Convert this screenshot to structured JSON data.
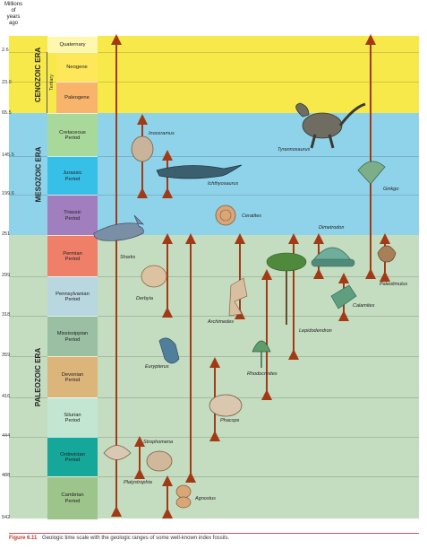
{
  "y_axis": {
    "title_line1": "Millions",
    "title_line2": "of",
    "title_line3": "years",
    "title_line4": "ago",
    "ticks": [
      "2.6",
      "23.0",
      "65.5",
      "145.5",
      "199.6",
      "251",
      "299",
      "318",
      "359",
      "416",
      "444",
      "488",
      "542"
    ]
  },
  "eras": {
    "cenozoic": "CENOZOIC ERA",
    "mesozoic": "MESOZOIC ERA",
    "paleozoic": "PALEOZOIC ERA",
    "tertiary": "Tertiary"
  },
  "periods": {
    "quaternary": "Quaternary",
    "neogene": "Neogene",
    "paleogene": "Paleogene",
    "cretaceous_1": "Cretaceous",
    "cretaceous_2": "Period",
    "jurassic_1": "Jurassic",
    "jurassic_2": "Period",
    "triassic_1": "Triassic",
    "triassic_2": "Period",
    "permian_1": "Permian",
    "permian_2": "Period",
    "pennsylvanian_1": "Pennsylvanian",
    "pennsylvanian_2": "Period",
    "mississippian_1": "Mississippian",
    "mississippian_2": "Period",
    "devonian_1": "Devonian",
    "devonian_2": "Period",
    "silurian_1": "Silurian",
    "silurian_2": "Period",
    "ordovician_1": "Ordovician",
    "ordovician_2": "Period",
    "cambrian_1": "Cambrian",
    "cambrian_2": "Period"
  },
  "fossils": {
    "inoceramus": "Inoceramus",
    "tyrannosaurus": "Tyrannosaurus",
    "ichthyosaurus": "Ichthyosaurus",
    "ginkgo": "Ginkgo",
    "ceratites": "Ceratites",
    "dimetrodon": "Dimetrodon",
    "sharks": "Sharks",
    "derbyia": "Derbyia",
    "paleolimulus": "Paleolimulus",
    "calamites": "Calamites",
    "archimedes": "Archimedes",
    "lepidodendron": "Lepidodendron",
    "eurypterus": "Eurypterus",
    "rhodocrinites": "Rhodocrinites",
    "phacops": "Phacops",
    "strophomena": "Strophomena",
    "platystrophia": "Platystrophia",
    "agnostus": "Agnostus"
  },
  "caption": {
    "figure": "Figure 6.11",
    "text": "Geologic time scale with the geologic ranges of some well-known index fossils."
  },
  "colors": {
    "cenozoic_bg": "#f8e94a",
    "mesozoic_bg": "#8fd3ea",
    "paleozoic_bg": "#c4dcc0",
    "arrow": "#a33a16"
  }
}
